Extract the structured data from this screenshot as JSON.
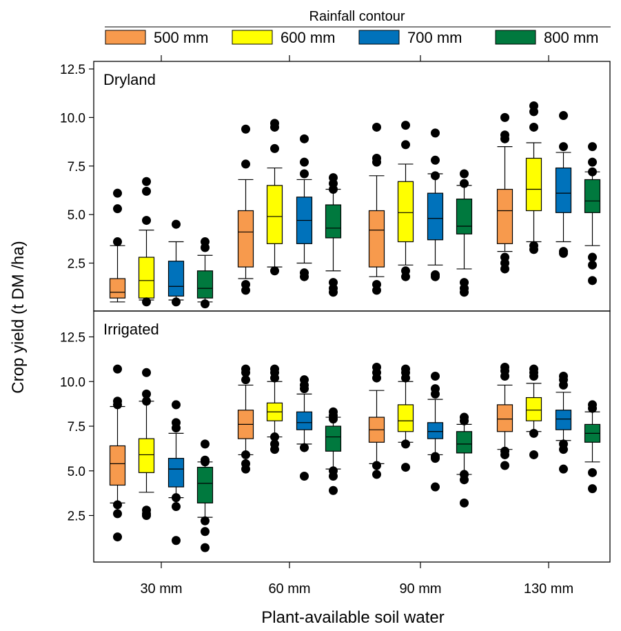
{
  "chart_data": {
    "type": "box",
    "legend": {
      "title": "Rainfall contour",
      "position": "top",
      "entries": [
        {
          "name": "500 mm",
          "color": "#f79a4d"
        },
        {
          "name": "600 mm",
          "color": "#ffff00"
        },
        {
          "name": "700 mm",
          "color": "#0072bb"
        },
        {
          "name": "800 mm",
          "color": "#00793e"
        }
      ]
    },
    "xlabel": "Plant-available soil water",
    "ylabel": "Crop yield (t DM /ha)",
    "categories": [
      "30 mm",
      "60 mm",
      "90 mm",
      "130 mm"
    ],
    "yticks": [
      "2.5",
      "5.0",
      "7.5",
      "10.0",
      "12.5"
    ],
    "panels": [
      {
        "name": "Dryland",
        "ylim": [
          0.5,
          13.5
        ],
        "groups": [
          {
            "category": "30 mm",
            "boxes": [
              {
                "series": "500 mm",
                "q1": 0.7,
                "median": 1.0,
                "q3": 1.7,
                "whisker_low": 0.5,
                "whisker_high": 3.4,
                "outliers": [
                  6.1,
                  5.3,
                  3.6
                ]
              },
              {
                "series": "600 mm",
                "q1": 0.7,
                "median": 1.6,
                "q3": 2.8,
                "whisker_low": 0.6,
                "whisker_high": 4.2,
                "outliers": [
                  6.7,
                  6.2,
                  4.7,
                  0.5
                ]
              },
              {
                "series": "700 mm",
                "q1": 0.8,
                "median": 1.3,
                "q3": 2.6,
                "whisker_low": 0.6,
                "whisker_high": 3.6,
                "outliers": [
                  4.5,
                  0.5
                ]
              },
              {
                "series": "800 mm",
                "q1": 0.7,
                "median": 1.2,
                "q3": 2.1,
                "whisker_low": 0.5,
                "whisker_high": 2.9,
                "outliers": [
                  3.6,
                  3.3,
                  0.4
                ]
              }
            ]
          },
          {
            "category": "60 mm",
            "boxes": [
              {
                "series": "500 mm",
                "q1": 2.3,
                "median": 4.1,
                "q3": 5.2,
                "whisker_low": 1.7,
                "whisker_high": 6.8,
                "outliers": [
                  9.4,
                  7.6,
                  1.4,
                  1.1
                ]
              },
              {
                "series": "600 mm",
                "q1": 3.5,
                "median": 4.9,
                "q3": 6.5,
                "whisker_low": 2.3,
                "whisker_high": 7.4,
                "outliers": [
                  9.7,
                  9.5,
                  8.4,
                  2.1
                ]
              },
              {
                "series": "700 mm",
                "q1": 3.5,
                "median": 4.7,
                "q3": 5.9,
                "whisker_low": 2.5,
                "whisker_high": 6.8,
                "outliers": [
                  8.9,
                  7.7,
                  7.1,
                  2.0,
                  1.8
                ]
              },
              {
                "series": "800 mm",
                "q1": 3.8,
                "median": 4.3,
                "q3": 5.5,
                "whisker_low": 2.1,
                "whisker_high": 6.3,
                "outliers": [
                  6.9,
                  6.6,
                  6.3,
                  1.5,
                  1.2,
                  1.0
                ]
              }
            ]
          },
          {
            "category": "90 mm",
            "boxes": [
              {
                "series": "500 mm",
                "q1": 2.3,
                "median": 4.2,
                "q3": 5.2,
                "whisker_low": 1.8,
                "whisker_high": 7.0,
                "outliers": [
                  9.5,
                  7.9,
                  7.7,
                  1.4,
                  1.1
                ]
              },
              {
                "series": "600 mm",
                "q1": 3.6,
                "median": 5.1,
                "q3": 6.7,
                "whisker_low": 2.4,
                "whisker_high": 7.6,
                "outliers": [
                  9.6,
                  8.6,
                  2.1,
                  1.8
                ]
              },
              {
                "series": "700 mm",
                "q1": 3.7,
                "median": 4.8,
                "q3": 6.1,
                "whisker_low": 2.4,
                "whisker_high": 7.1,
                "outliers": [
                  9.2,
                  7.8,
                  7.0,
                  1.9,
                  1.8
                ]
              },
              {
                "series": "800 mm",
                "q1": 4.0,
                "median": 4.4,
                "q3": 5.8,
                "whisker_low": 2.2,
                "whisker_high": 6.5,
                "outliers": [
                  7.1,
                  6.6,
                  1.5,
                  1.2,
                  1.0
                ]
              }
            ]
          },
          {
            "category": "130 mm",
            "boxes": [
              {
                "series": "500 mm",
                "q1": 3.5,
                "median": 5.2,
                "q3": 6.3,
                "whisker_low": 3.1,
                "whisker_high": 8.5,
                "outliers": [
                  10.0,
                  9.1,
                  8.9,
                  2.8,
                  2.5,
                  2.2
                ]
              },
              {
                "series": "600 mm",
                "q1": 5.2,
                "median": 6.3,
                "q3": 7.9,
                "whisker_low": 3.6,
                "whisker_high": 8.7,
                "outliers": [
                  10.6,
                  10.3,
                  9.5,
                  3.4,
                  3.2
                ]
              },
              {
                "series": "700 mm",
                "q1": 5.1,
                "median": 6.1,
                "q3": 7.4,
                "whisker_low": 3.6,
                "whisker_high": 8.2,
                "outliers": [
                  10.1,
                  8.5,
                  3.1,
                  3.0
                ]
              },
              {
                "series": "800 mm",
                "q1": 5.1,
                "median": 5.7,
                "q3": 6.8,
                "whisker_low": 3.4,
                "whisker_high": 7.2,
                "outliers": [
                  8.5,
                  7.7,
                  7.2,
                  2.8,
                  2.4,
                  1.6
                ]
              }
            ]
          }
        ]
      },
      {
        "name": "Irrigated",
        "ylim": [
          0.0,
          13.5
        ],
        "groups": [
          {
            "category": "30 mm",
            "boxes": [
              {
                "series": "500 mm",
                "q1": 4.2,
                "median": 5.4,
                "q3": 6.4,
                "whisker_low": 3.2,
                "whisker_high": 8.6,
                "outliers": [
                  10.7,
                  8.9,
                  8.7,
                  3.1,
                  2.6,
                  1.3
                ]
              },
              {
                "series": "600 mm",
                "q1": 4.9,
                "median": 5.9,
                "q3": 6.8,
                "whisker_low": 3.8,
                "whisker_high": 8.9,
                "outliers": [
                  10.5,
                  9.3,
                  8.9,
                  2.8,
                  2.6,
                  2.5
                ]
              },
              {
                "series": "700 mm",
                "q1": 4.1,
                "median": 5.1,
                "q3": 5.7,
                "whisker_low": 3.5,
                "whisker_high": 7.1,
                "outliers": [
                  8.7,
                  7.7,
                  7.4,
                  3.5,
                  3.0,
                  1.1
                ]
              },
              {
                "series": "800 mm",
                "q1": 3.2,
                "median": 4.3,
                "q3": 5.2,
                "whisker_low": 2.4,
                "whisker_high": 5.5,
                "outliers": [
                  6.5,
                  5.6,
                  5.5,
                  2.2,
                  1.6,
                  0.7
                ]
              }
            ]
          },
          {
            "category": "60 mm",
            "boxes": [
              {
                "series": "500 mm",
                "q1": 6.8,
                "median": 7.6,
                "q3": 8.4,
                "whisker_low": 5.9,
                "whisker_high": 9.8,
                "outliers": [
                  10.7,
                  10.5,
                  10.1,
                  5.9,
                  5.4,
                  5.1
                ]
              },
              {
                "series": "600 mm",
                "q1": 7.8,
                "median": 8.3,
                "q3": 8.8,
                "whisker_low": 6.9,
                "whisker_high": 10.0,
                "outliers": [
                  10.7,
                  10.5,
                  10.2,
                  6.9,
                  6.5,
                  6.2
                ]
              },
              {
                "series": "700 mm",
                "q1": 7.3,
                "median": 7.7,
                "q3": 8.3,
                "whisker_low": 6.5,
                "whisker_high": 9.3,
                "outliers": [
                  10.1,
                  9.8,
                  9.6,
                  6.3,
                  4.7
                ]
              },
              {
                "series": "800 mm",
                "q1": 6.1,
                "median": 6.9,
                "q3": 7.5,
                "whisker_low": 5.1,
                "whisker_high": 8.0,
                "outliers": [
                  8.3,
                  8.1,
                  7.9,
                  5.0,
                  4.7,
                  3.9
                ]
              }
            ]
          },
          {
            "category": "90 mm",
            "boxes": [
              {
                "series": "500 mm",
                "q1": 6.6,
                "median": 7.3,
                "q3": 8.0,
                "whisker_low": 5.4,
                "whisker_high": 9.5,
                "outliers": [
                  10.8,
                  10.5,
                  10.2,
                  5.3,
                  4.8
                ]
              },
              {
                "series": "600 mm",
                "q1": 7.2,
                "median": 7.8,
                "q3": 8.7,
                "whisker_low": 6.6,
                "whisker_high": 10.0,
                "outliers": [
                  10.7,
                  10.5,
                  10.2,
                  6.5,
                  5.2
                ]
              },
              {
                "series": "700 mm",
                "q1": 6.8,
                "median": 7.2,
                "q3": 7.7,
                "whisker_low": 5.9,
                "whisker_high": 9.0,
                "outliers": [
                  10.3,
                  9.6,
                  9.3,
                  5.8,
                  5.7,
                  4.1
                ]
              },
              {
                "series": "800 mm",
                "q1": 6.0,
                "median": 6.5,
                "q3": 7.2,
                "whisker_low": 4.8,
                "whisker_high": 7.6,
                "outliers": [
                  8.0,
                  7.8,
                  4.8,
                  4.5,
                  3.2
                ]
              }
            ]
          },
          {
            "category": "130 mm",
            "boxes": [
              {
                "series": "500 mm",
                "q1": 7.2,
                "median": 7.9,
                "q3": 8.7,
                "whisker_low": 6.2,
                "whisker_high": 9.8,
                "outliers": [
                  10.8,
                  10.6,
                  10.3,
                  6.1,
                  5.9,
                  5.3
                ]
              },
              {
                "series": "600 mm",
                "q1": 7.8,
                "median": 8.4,
                "q3": 9.1,
                "whisker_low": 7.2,
                "whisker_high": 9.9,
                "outliers": [
                  10.7,
                  10.5,
                  10.3,
                  7.1,
                  5.9
                ]
              },
              {
                "series": "700 mm",
                "q1": 7.3,
                "median": 7.9,
                "q3": 8.4,
                "whisker_low": 6.7,
                "whisker_high": 9.4,
                "outliers": [
                  10.3,
                  10.1,
                  9.8,
                  6.5,
                  6.2,
                  5.1
                ]
              },
              {
                "series": "800 mm",
                "q1": 6.6,
                "median": 7.1,
                "q3": 7.6,
                "whisker_low": 5.5,
                "whisker_high": 8.3,
                "outliers": [
                  8.7,
                  8.5,
                  4.9,
                  4.0
                ]
              }
            ]
          }
        ]
      }
    ]
  }
}
